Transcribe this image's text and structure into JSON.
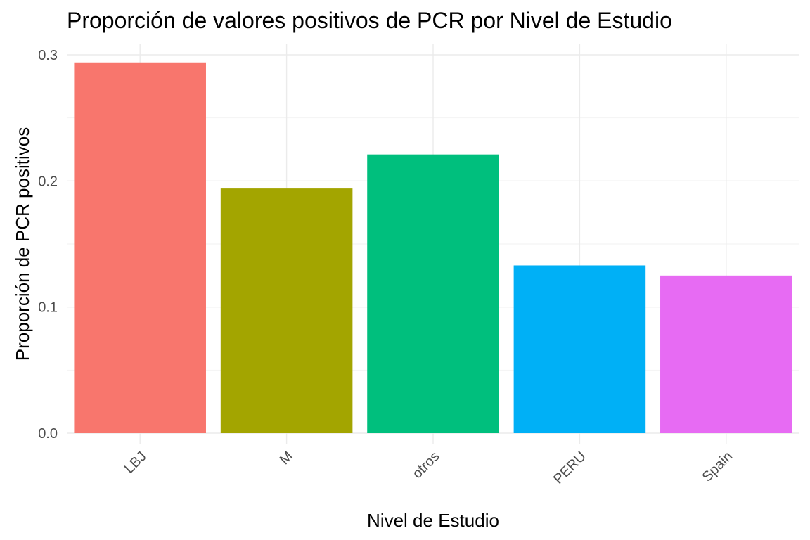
{
  "chart_data": {
    "type": "bar",
    "title": "Proporción de valores positivos de PCR por Nivel de Estudio",
    "xlabel": "Nivel de Estudio",
    "ylabel": "Proporción de PCR positivos",
    "categories": [
      "LBJ",
      "M",
      "otros",
      "PERU",
      "Spain"
    ],
    "values": [
      0.294,
      0.194,
      0.221,
      0.133,
      0.125
    ],
    "colors": [
      "#F8766D",
      "#A3A500",
      "#00BF7D",
      "#00B0F6",
      "#E76BF3"
    ],
    "ylim": [
      0,
      0.3
    ],
    "yticks": [
      "0.0",
      "0.1",
      "0.2",
      "0.3"
    ],
    "ytick_values": [
      0,
      0.1,
      0.2,
      0.3
    ],
    "grid": true,
    "legend": "none"
  }
}
